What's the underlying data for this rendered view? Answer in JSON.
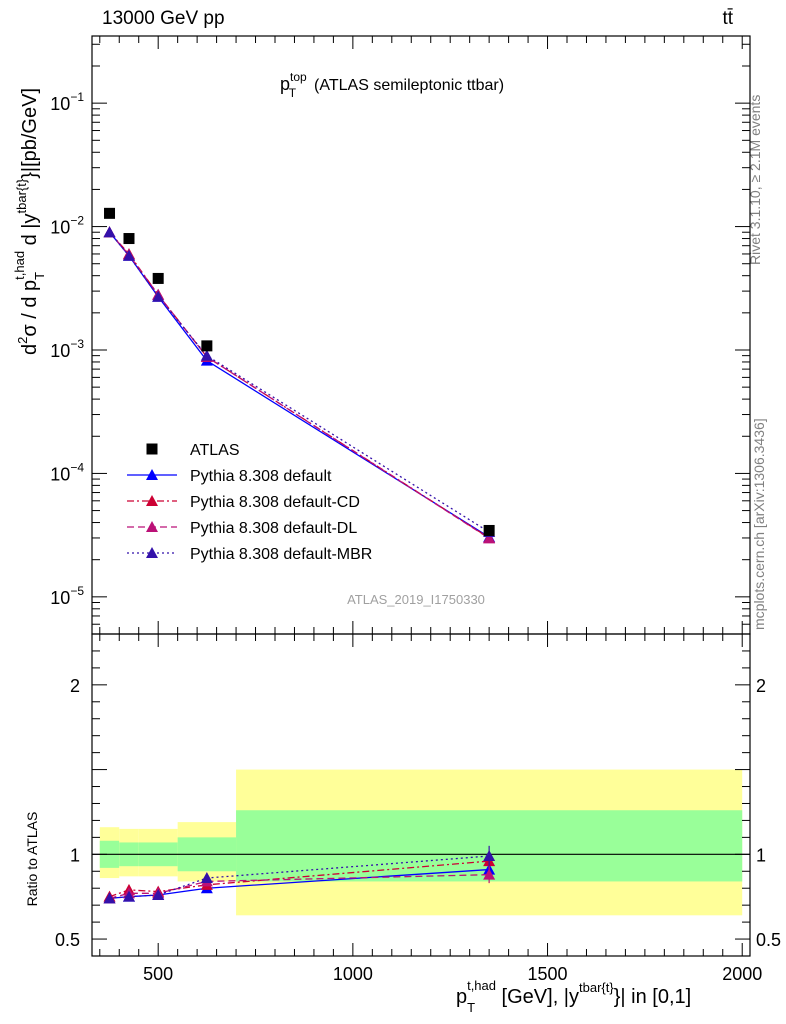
{
  "header": {
    "left": "13000 GeV pp",
    "right": "tt̄"
  },
  "side_labels": {
    "rivet": "Rivet 3.1.10, ≥ 2.1M events",
    "mcplots": "mcplots.cern.ch [arXiv:1306.3436]"
  },
  "plot_title": {
    "main": "p",
    "sup": "top",
    "sub": "T",
    "rest": "(ATLAS semileptonic ttbar)"
  },
  "analysis_id": "ATLAS_2019_I1750330",
  "y_axis_label": {
    "p1": "d",
    "p1sup": "2",
    "p2": "σ  /  d p",
    "p2sub": "T",
    "p2sup": "t,had",
    "p3": " d |y",
    "p3sup": "tbar{t}",
    "p4": "}|[pb/GeV]"
  },
  "x_axis_label": {
    "p1": "p",
    "p1sub": "T",
    "p1sup": "t,had",
    "p2": " [GeV], |y",
    "p2sup": "tbar{t}",
    "p3": "}| in [0,1]"
  },
  "ratio_label": "Ratio to ATLAS",
  "colors": {
    "data": "#000000",
    "default": "#0000ff",
    "cd": "#cc0033",
    "dl": "#bb1177",
    "mbr": "#3311aa",
    "band_inner": "#99ff99",
    "band_outer": "#ffff99"
  },
  "chart_data": {
    "type": "line",
    "x_range": [
      330,
      2020
    ],
    "x_ticks": [
      500,
      1000,
      1500,
      2000
    ],
    "main": {
      "y_scale": "log",
      "y_range": [
        5e-06,
        0.35
      ],
      "y_ticks": [
        {
          "value": 1e-05,
          "base": "10",
          "exp": "−5"
        },
        {
          "value": 0.0001,
          "base": "10",
          "exp": "−4"
        },
        {
          "value": 0.001,
          "base": "10",
          "exp": "−3"
        },
        {
          "value": 0.01,
          "base": "10",
          "exp": "−2"
        },
        {
          "value": 0.1,
          "base": "10",
          "exp": "−1"
        }
      ],
      "data": {
        "name": "ATLAS",
        "x": [
          375,
          425,
          500,
          625,
          1350
        ],
        "y": [
          0.0128,
          0.008,
          0.0038,
          0.00108,
          3.45e-05
        ]
      },
      "series": [
        {
          "key": "default",
          "name": "Pythia 8.308 default",
          "style": "solid",
          "x": [
            375,
            425,
            500,
            625,
            1350
          ],
          "y": [
            0.009,
            0.0058,
            0.0027,
            0.00082,
            3.05e-05
          ]
        },
        {
          "key": "cd",
          "name": "Pythia 8.308 default-CD",
          "style": "dashdot",
          "x": [
            375,
            425,
            500,
            625,
            1350
          ],
          "y": [
            0.009,
            0.006,
            0.0028,
            0.00088,
            3e-05
          ]
        },
        {
          "key": "dl",
          "name": "Pythia 8.308 default-DL",
          "style": "dashed",
          "x": [
            375,
            425,
            500,
            625,
            1350
          ],
          "y": [
            0.009,
            0.0059,
            0.0028,
            0.00088,
            2.98e-05
          ]
        },
        {
          "key": "mbr",
          "name": "Pythia 8.308 default-MBR",
          "style": "dotted",
          "x": [
            375,
            425,
            500,
            625,
            1350
          ],
          "y": [
            0.009,
            0.0058,
            0.0027,
            0.0009,
            3.35e-05
          ]
        }
      ]
    },
    "ratio": {
      "y_scale": "linear",
      "y_range": [
        0.4,
        2.3
      ],
      "y_ticks": [
        0.5,
        1,
        2
      ],
      "reference": 1,
      "bins": [
        {
          "x": [
            350,
            400
          ],
          "inner": [
            0.92,
            1.08
          ],
          "outer": [
            0.86,
            1.16
          ]
        },
        {
          "x": [
            400,
            450
          ],
          "inner": [
            0.93,
            1.07
          ],
          "outer": [
            0.87,
            1.15
          ]
        },
        {
          "x": [
            450,
            550
          ],
          "inner": [
            0.93,
            1.07
          ],
          "outer": [
            0.87,
            1.15
          ]
        },
        {
          "x": [
            550,
            700
          ],
          "inner": [
            0.9,
            1.1
          ],
          "outer": [
            0.84,
            1.19
          ]
        },
        {
          "x": [
            700,
            2000
          ],
          "inner": [
            0.84,
            1.26
          ],
          "outer": [
            0.64,
            1.5
          ]
        }
      ],
      "series": [
        {
          "key": "default",
          "y": [
            0.74,
            0.75,
            0.76,
            0.8,
            0.91
          ],
          "err": [
            0.015,
            0.015,
            0.015,
            0.02,
            0.04
          ]
        },
        {
          "key": "cd",
          "y": [
            0.75,
            0.79,
            0.78,
            0.82,
            0.96
          ],
          "err": [
            0.015,
            0.015,
            0.015,
            0.02,
            0.05
          ]
        },
        {
          "key": "dl",
          "y": [
            0.74,
            0.77,
            0.77,
            0.84,
            0.88
          ],
          "err": [
            0.015,
            0.015,
            0.015,
            0.02,
            0.05
          ]
        },
        {
          "key": "mbr",
          "y": [
            0.74,
            0.75,
            0.76,
            0.86,
            0.99
          ],
          "err": [
            0.015,
            0.015,
            0.015,
            0.02,
            0.06
          ]
        }
      ]
    }
  }
}
